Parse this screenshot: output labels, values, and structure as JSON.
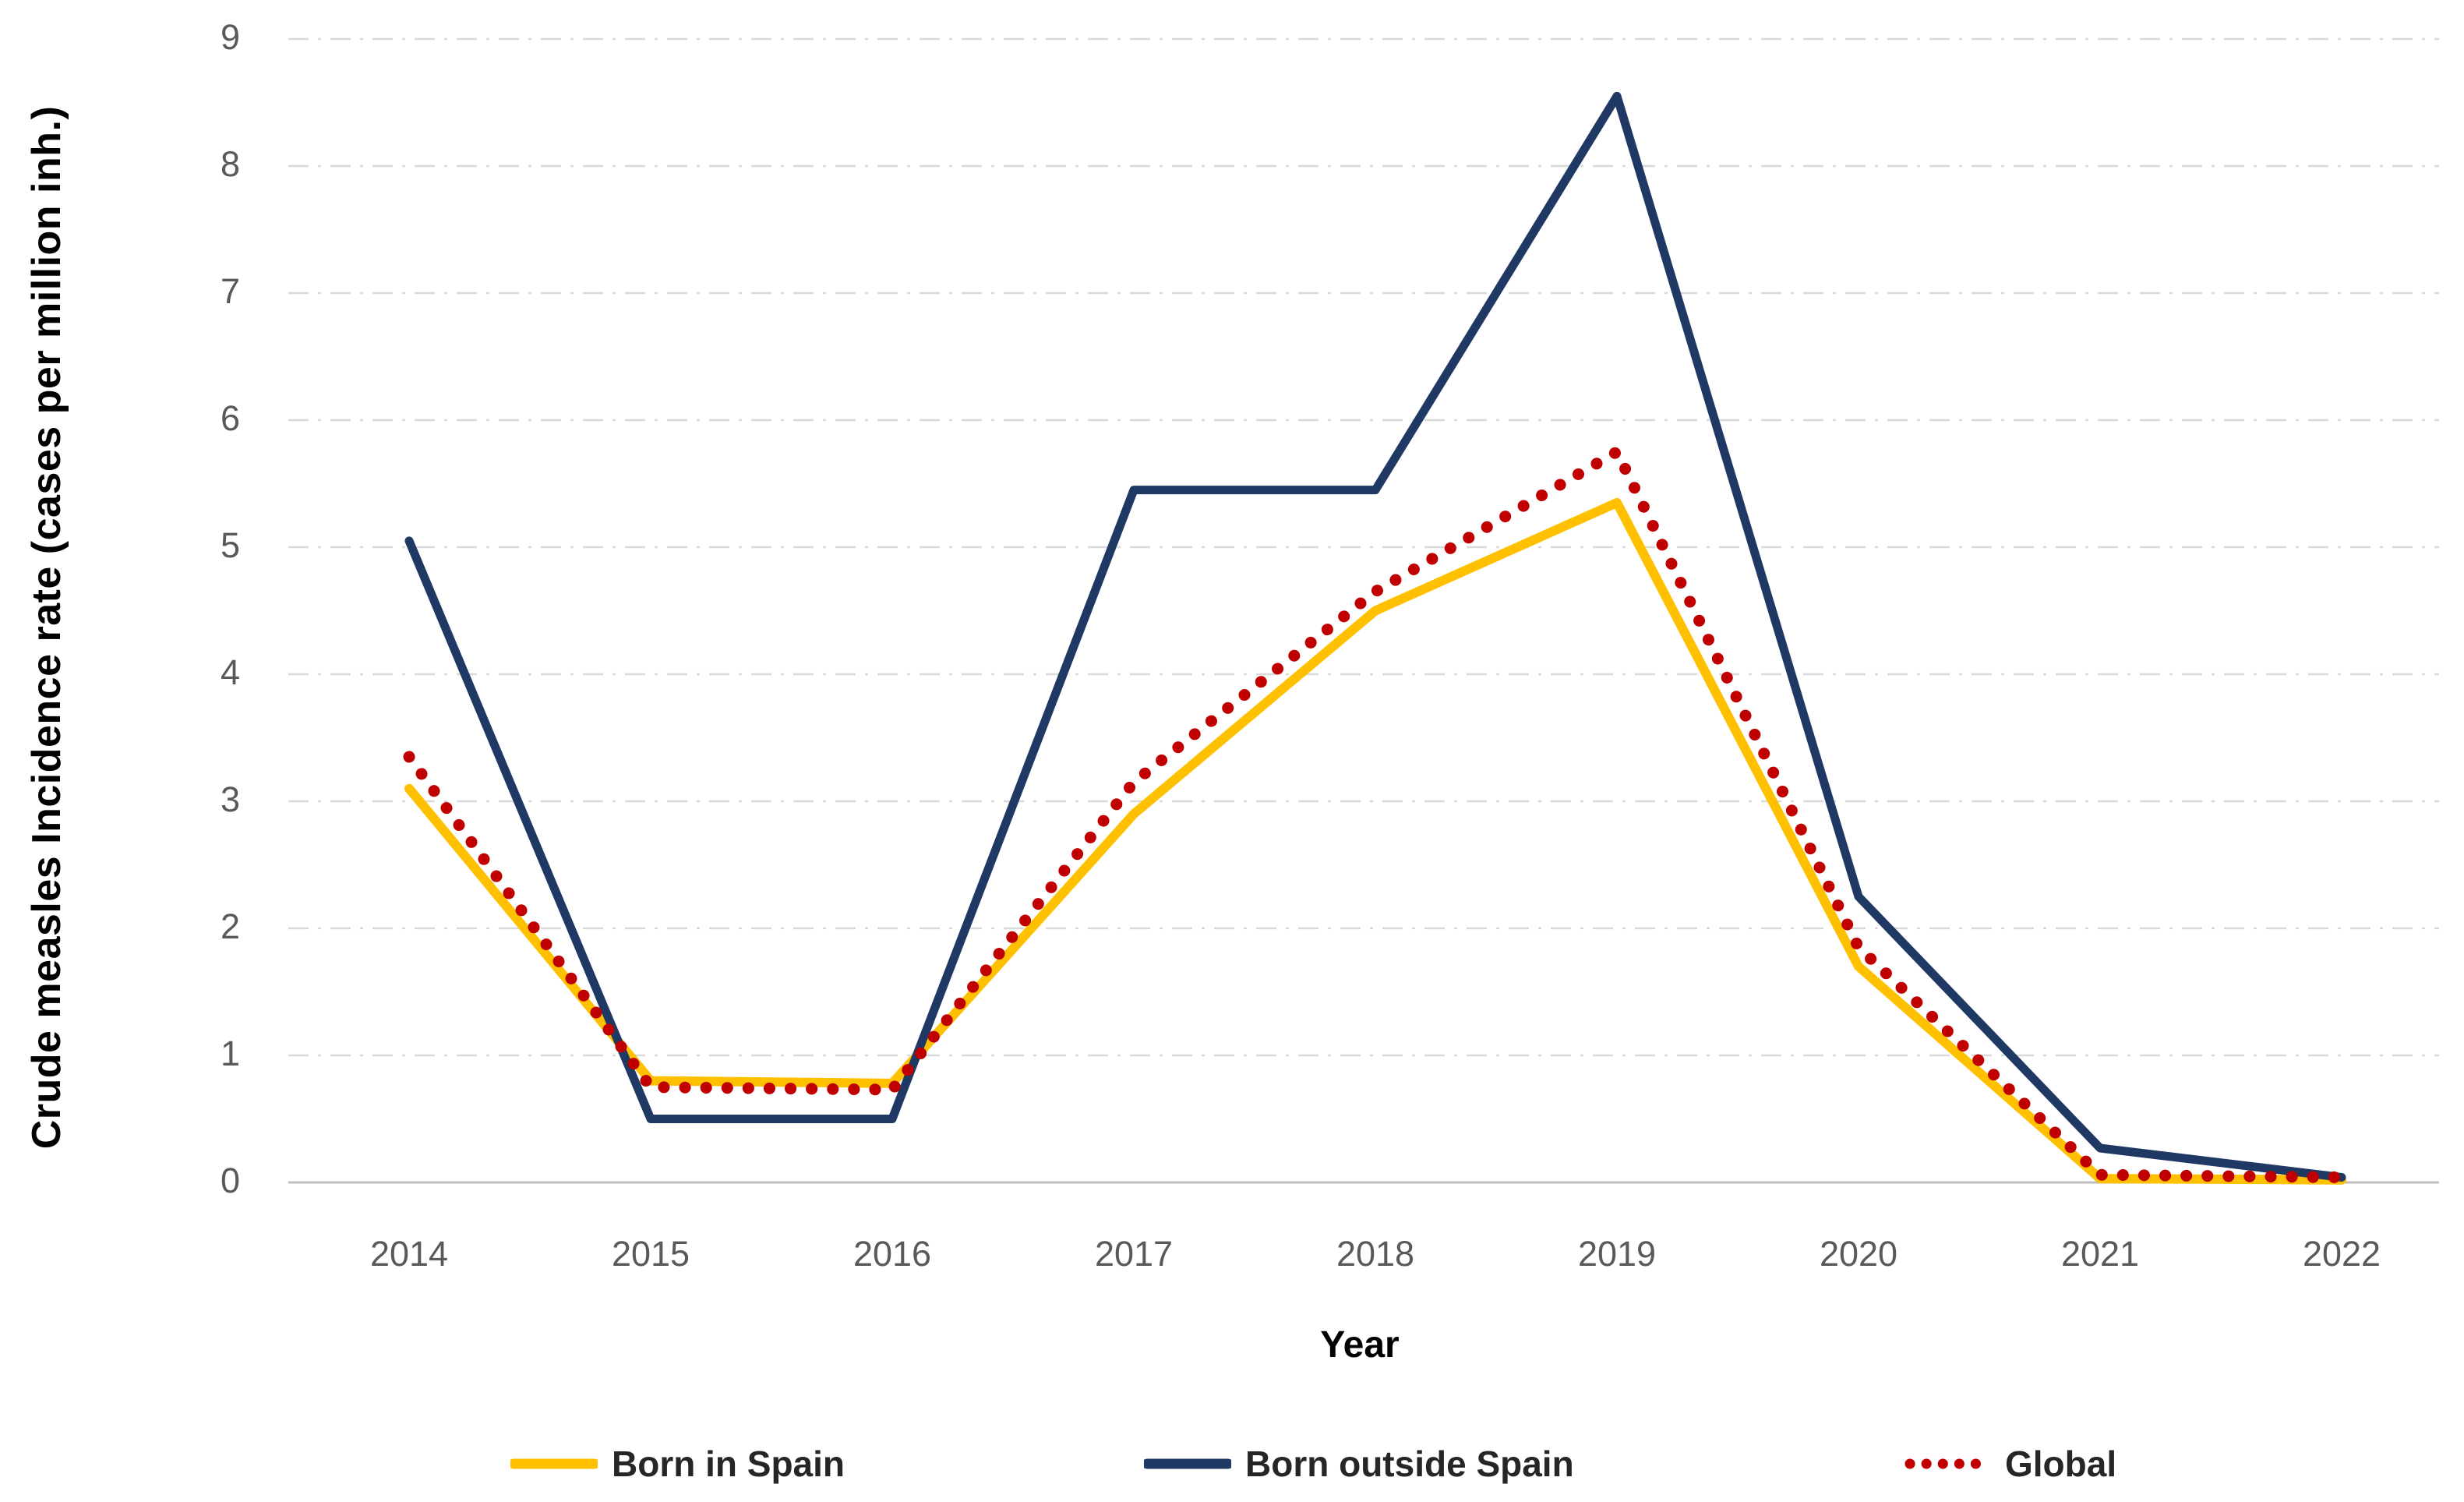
{
  "chart_data": {
    "type": "line",
    "title": "",
    "xlabel": "Year",
    "ylabel": "Crude measles Incidence rate (cases per million inh.)",
    "categories": [
      "2014",
      "2015",
      "2016",
      "2017",
      "2018",
      "2019",
      "2020",
      "2021",
      "2022"
    ],
    "y_ticks": [
      0,
      1,
      2,
      3,
      4,
      5,
      6,
      7,
      8,
      9
    ],
    "ylim": [
      0,
      9
    ],
    "grid": "horizontal-dashed",
    "legend_position": "bottom",
    "series": [
      {
        "name": "Born in Spain",
        "color": "#FFC000",
        "style": "solid",
        "values": [
          3.1,
          0.8,
          0.78,
          2.9,
          4.5,
          5.35,
          1.7,
          0.03,
          0.02
        ]
      },
      {
        "name": "Born outside Spain",
        "color": "#1F3864",
        "style": "solid",
        "values": [
          5.05,
          0.5,
          0.5,
          5.45,
          5.45,
          8.55,
          2.25,
          0.27,
          0.04
        ]
      },
      {
        "name": "Global",
        "color": "#C00000",
        "style": "dotted",
        "values": [
          3.35,
          0.75,
          0.73,
          3.15,
          4.65,
          5.75,
          1.85,
          0.06,
          0.04
        ]
      }
    ],
    "colors": {
      "gridline": "#D9D9D9",
      "axis_line": "#BFBFBF",
      "tick_text": "#595959",
      "title_text": "#000000"
    }
  }
}
